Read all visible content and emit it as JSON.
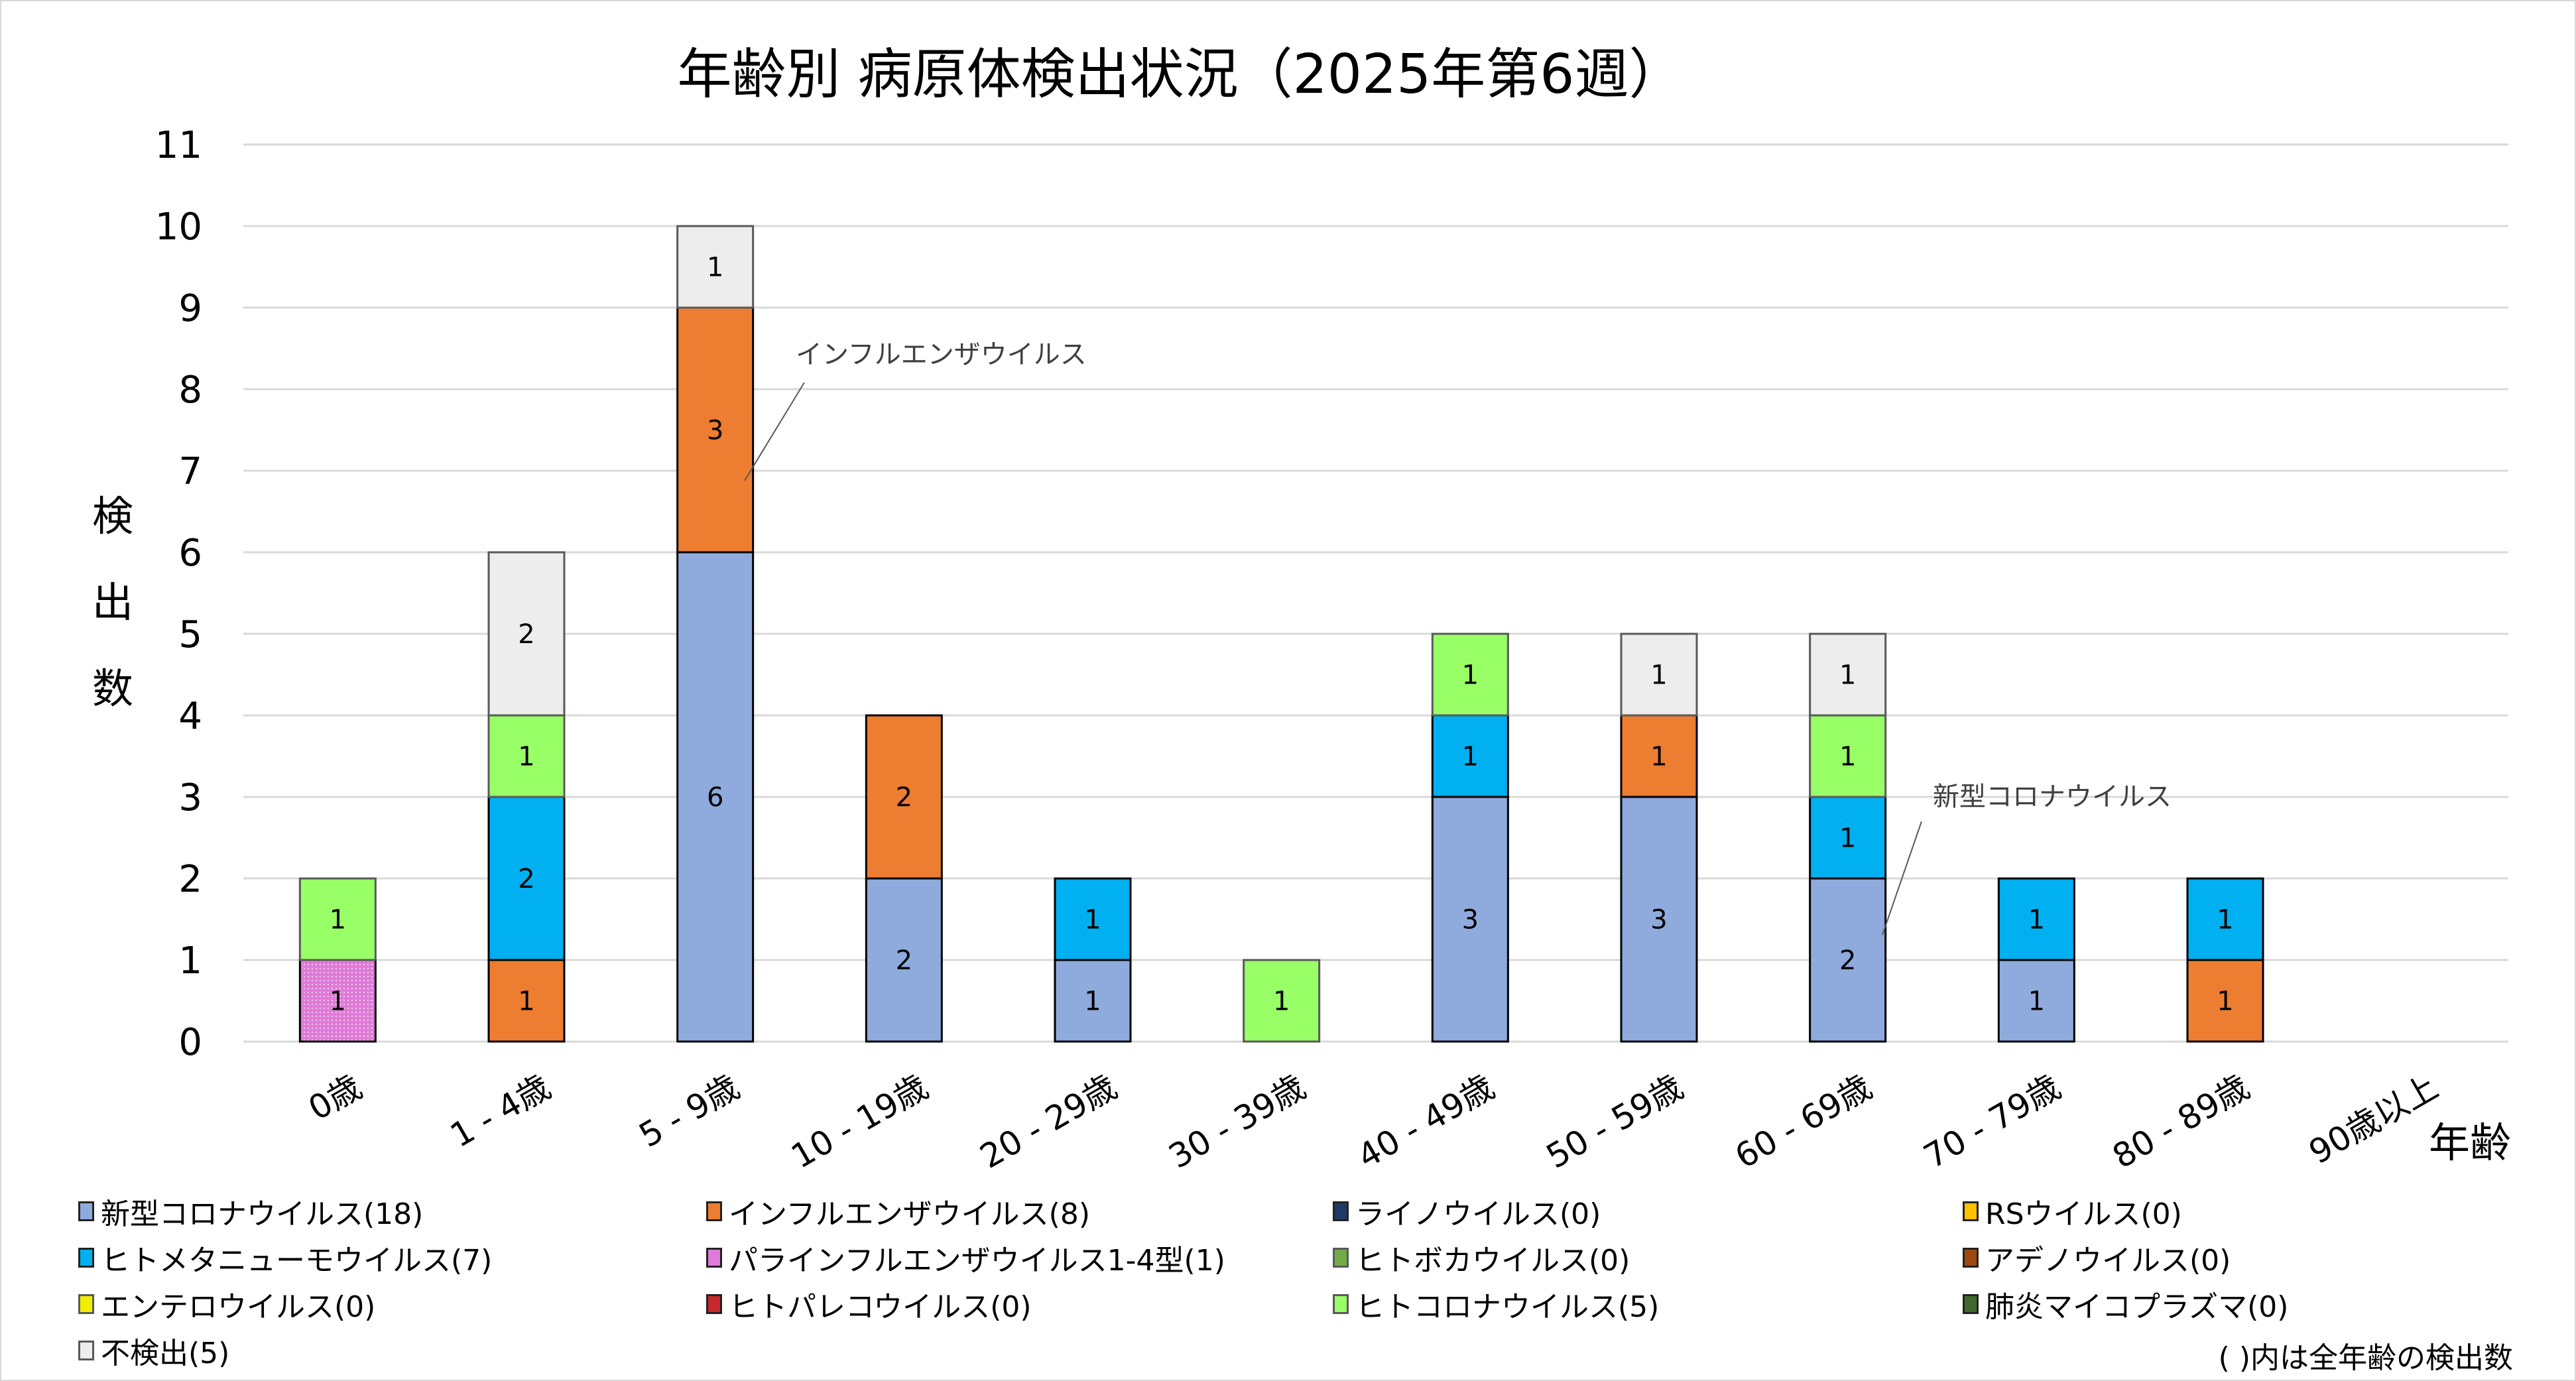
{
  "chart_data": {
    "type": "bar",
    "stacked": true,
    "title": "年齢別 病原体検出状況（2025年第6週）",
    "xlabel": "年齢",
    "ylabel": "検出数",
    "ylim": [
      0,
      11
    ],
    "yticks": [
      0,
      1,
      2,
      3,
      4,
      5,
      6,
      7,
      8,
      9,
      10,
      11
    ],
    "grid": true,
    "legend_position": "bottom",
    "categories": [
      "0歳",
      "1 - 4歳",
      "5 - 9歳",
      "10 - 19歳",
      "20 - 29歳",
      "30 - 39歳",
      "40 - 49歳",
      "50 - 59歳",
      "60 - 69歳",
      "70 - 79歳",
      "80 - 89歳",
      "90歳以上"
    ],
    "series": [
      {
        "name": "新型コロナウイルス",
        "total": 18,
        "color": "#8FAADC",
        "values": [
          0,
          0,
          6,
          2,
          1,
          0,
          3,
          3,
          2,
          1,
          0,
          0
        ]
      },
      {
        "name": "インフルエンザウイルス",
        "total": 8,
        "color": "#ED7D31",
        "values": [
          0,
          1,
          3,
          2,
          0,
          0,
          0,
          1,
          0,
          0,
          1,
          0
        ]
      },
      {
        "name": "ライノウイルス",
        "total": 0,
        "color": "#203864",
        "values": [
          0,
          0,
          0,
          0,
          0,
          0,
          0,
          0,
          0,
          0,
          0,
          0
        ]
      },
      {
        "name": "RSウイルス",
        "total": 0,
        "color": "#FFC000",
        "values": [
          0,
          0,
          0,
          0,
          0,
          0,
          0,
          0,
          0,
          0,
          0,
          0
        ]
      },
      {
        "name": "ヒトメタニューモウイルス",
        "total": 7,
        "color": "#00B0F0",
        "values": [
          0,
          2,
          0,
          0,
          1,
          0,
          1,
          0,
          1,
          1,
          1,
          0
        ]
      },
      {
        "name": "パラインフルエンザウイルス1-4型",
        "total": 1,
        "color": "#E07AD8",
        "pattern": "dotted",
        "values": [
          1,
          0,
          0,
          0,
          0,
          0,
          0,
          0,
          0,
          0,
          0,
          0
        ]
      },
      {
        "name": "ヒトボカウイルス",
        "total": 0,
        "color": "#70AD47",
        "values": [
          0,
          0,
          0,
          0,
          0,
          0,
          0,
          0,
          0,
          0,
          0,
          0
        ]
      },
      {
        "name": "アデノウイルス",
        "total": 0,
        "color": "#9E480E",
        "values": [
          0,
          0,
          0,
          0,
          0,
          0,
          0,
          0,
          0,
          0,
          0,
          0
        ]
      },
      {
        "name": "エンテロウイルス",
        "total": 0,
        "color": "#F2EE00",
        "values": [
          0,
          0,
          0,
          0,
          0,
          0,
          0,
          0,
          0,
          0,
          0,
          0
        ]
      },
      {
        "name": "ヒトパレコウイルス",
        "total": 0,
        "color": "#C8282D",
        "pattern": "dotted",
        "values": [
          0,
          0,
          0,
          0,
          0,
          0,
          0,
          0,
          0,
          0,
          0,
          0
        ]
      },
      {
        "name": "ヒトコロナウイルス",
        "total": 5,
        "color": "#99FF66",
        "values": [
          1,
          1,
          0,
          0,
          0,
          1,
          1,
          0,
          1,
          0,
          0,
          0
        ]
      },
      {
        "name": "肺炎マイコプラズマ",
        "total": 0,
        "color": "#43682B",
        "values": [
          0,
          0,
          0,
          0,
          0,
          0,
          0,
          0,
          0,
          0,
          0,
          0
        ]
      },
      {
        "name": "不検出",
        "total": 5,
        "color": "#EDEDED",
        "values": [
          0,
          2,
          1,
          0,
          0,
          0,
          0,
          1,
          1,
          0,
          0,
          0
        ]
      }
    ],
    "annotations": [
      {
        "text": "インフルエンザウイルス",
        "series": "インフルエンザウイルス",
        "category": "5 - 9歳"
      },
      {
        "text": "新型コロナウイルス",
        "series": "新型コロナウイルス",
        "category": "60 - 69歳"
      }
    ],
    "footnote": "( )内は全年齢の検出数"
  },
  "legend_order": [
    [
      "新型コロナウイルス",
      "インフルエンザウイルス",
      "ライノウイルス",
      "RSウイルス"
    ],
    [
      "ヒトメタニューモウイルス",
      "パラインフルエンザウイルス1-4型",
      "ヒトボカウイルス",
      "アデノウイルス"
    ],
    [
      "エンテロウイルス",
      "ヒトパレコウイルス",
      "ヒトコロナウイルス",
      "肺炎マイコプラズマ"
    ],
    [
      "不検出"
    ]
  ]
}
